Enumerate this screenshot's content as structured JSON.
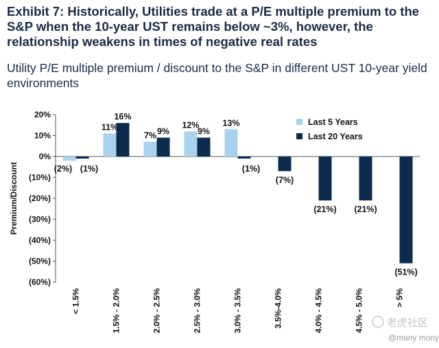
{
  "header": {
    "title": "Exhibit 7: Historically, Utilities trade at a P/E multiple premium to the S&P when the 10-year UST remains below ~3%, however, the relationship weakens in times of negative real rates",
    "subtitle": "Utility P/E multiple premium / discount to the S&P in different UST 10-year yield environments"
  },
  "watermark": {
    "text": "老虎社区",
    "handle": "@many mony"
  },
  "colors": {
    "last5": "#a9d2ee",
    "last20": "#0d2b4e",
    "axis": "#555555"
  },
  "chart_data": {
    "type": "bar",
    "title": "",
    "xlabel": "",
    "ylabel": "Premium/Discount",
    "ylim": [
      -60,
      20
    ],
    "yticks": [
      20,
      10,
      0,
      -10,
      -20,
      -30,
      -40,
      -50,
      -60
    ],
    "ytick_labels": [
      "20%",
      "10%",
      "0%",
      "(10%)",
      "(20%)",
      "(30%)",
      "(40%)",
      "(50%)",
      "(60%)"
    ],
    "categories": [
      "< 1.5%",
      "1.5% - 2.0%",
      "2.0% - 2.5%",
      "2.5% - 3.0%",
      "3.0% - 3.5%",
      "3.5%-4.0%",
      "4.0% - 4.5%",
      "4.5% - 5.0%",
      "> 5%"
    ],
    "series": [
      {
        "name": "Last 5 Years",
        "values": [
          -2,
          11,
          7,
          12,
          13,
          null,
          null,
          null,
          null
        ]
      },
      {
        "name": "Last 20 Years",
        "values": [
          -1,
          16,
          9,
          9,
          -1,
          -7,
          -21,
          -21,
          -51
        ]
      }
    ],
    "data_labels": [
      [
        "(2%)",
        "11%",
        "7%",
        "12%",
        "13%",
        null,
        null,
        null,
        null
      ],
      [
        "(1%)",
        "16%",
        "9%",
        "9%",
        "(1%)",
        "(7%)",
        "(21%)",
        "(21%)",
        "(51%)"
      ]
    ],
    "grid": false,
    "legend_position": "top-right"
  }
}
